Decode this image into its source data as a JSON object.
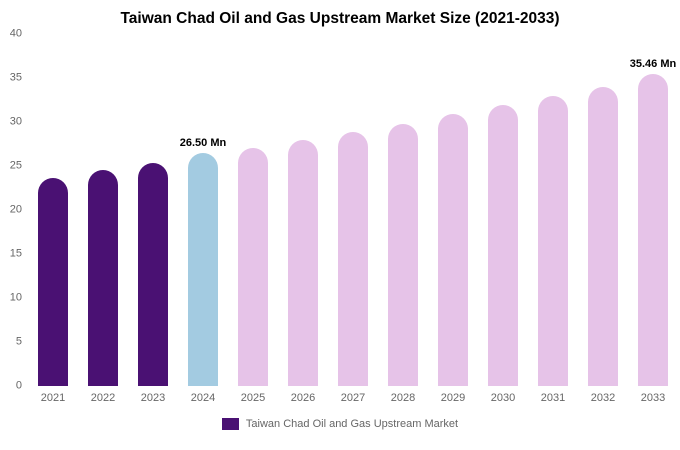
{
  "title": "Taiwan Chad Oil and Gas Upstream Market Size (2021-2033)",
  "legend": {
    "label": "Taiwan Chad Oil and Gas Upstream Market",
    "swatch_color": "#4a1173"
  },
  "chart_data": {
    "type": "bar",
    "title": "Taiwan Chad Oil and Gas Upstream Market Size (2021-2033)",
    "xlabel": "",
    "ylabel": "",
    "ylim": [
      0,
      40
    ],
    "yticks": [
      0,
      5,
      10,
      15,
      20,
      25,
      30,
      35,
      40
    ],
    "grid": false,
    "legend_position": "bottom",
    "categories": [
      "2021",
      "2022",
      "2023",
      "2024",
      "2025",
      "2026",
      "2027",
      "2028",
      "2029",
      "2030",
      "2031",
      "2032",
      "2033"
    ],
    "values": [
      23.6,
      24.5,
      25.3,
      26.5,
      27.1,
      27.9,
      28.9,
      29.8,
      30.9,
      31.9,
      32.9,
      34.0,
      35.46
    ],
    "bar_colors": [
      "#4a1173",
      "#4a1173",
      "#4a1173",
      "#a3cbe1",
      "#e6c3e8",
      "#e6c3e8",
      "#e6c3e8",
      "#e6c3e8",
      "#e6c3e8",
      "#e6c3e8",
      "#e6c3e8",
      "#e6c3e8",
      "#e6c3e8"
    ],
    "annotations": [
      {
        "category": "2024",
        "text": "26.50 Mn"
      },
      {
        "category": "2033",
        "text": "35.46 Mn"
      }
    ],
    "series_name": "Taiwan Chad Oil and Gas Upstream Market"
  }
}
